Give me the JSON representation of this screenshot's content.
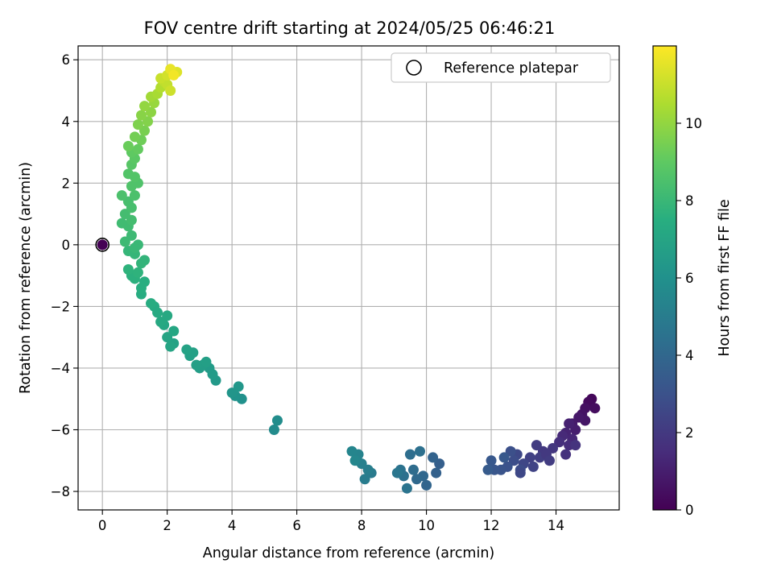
{
  "chart_data": {
    "type": "scatter",
    "title": "FOV centre drift starting at 2024/05/25 06:46:21",
    "xlabel": "Angular distance from reference (arcmin)",
    "ylabel": "Rotation from reference (arcmin)",
    "xlim": [
      -0.75,
      15.95
    ],
    "ylim": [
      -8.6,
      6.45
    ],
    "xticks": [
      0,
      2,
      4,
      6,
      8,
      10,
      12,
      14
    ],
    "yticks": [
      -8,
      -6,
      -4,
      -2,
      0,
      2,
      4,
      6
    ],
    "grid": true,
    "legend": {
      "placement": "top-right",
      "entries": [
        "Reference platepar"
      ]
    },
    "colorbar": {
      "label": "Hours from first FF file",
      "colormap": "viridis",
      "range": [
        0,
        12
      ],
      "ticks": [
        0,
        2,
        4,
        6,
        8,
        10
      ]
    },
    "reference_point": {
      "x": 0,
      "y": 0
    },
    "series": [
      {
        "points": [
          [
            15.1,
            -5.0,
            0.2
          ],
          [
            15.0,
            -5.1,
            0.3
          ],
          [
            15.2,
            -5.3,
            0.4
          ],
          [
            14.9,
            -5.3,
            0.5
          ],
          [
            14.8,
            -5.5,
            0.6
          ],
          [
            14.9,
            -5.7,
            0.7
          ],
          [
            14.7,
            -5.6,
            0.8
          ],
          [
            14.5,
            -5.8,
            0.9
          ],
          [
            14.6,
            -6.0,
            1.0
          ],
          [
            14.4,
            -5.8,
            1.1
          ],
          [
            14.3,
            -6.1,
            1.2
          ],
          [
            14.5,
            -6.3,
            1.3
          ],
          [
            14.2,
            -6.2,
            1.4
          ],
          [
            14.4,
            -6.5,
            1.5
          ],
          [
            14.1,
            -6.4,
            1.6
          ],
          [
            14.3,
            -6.8,
            1.7
          ],
          [
            14.6,
            -6.5,
            1.8
          ],
          [
            13.9,
            -6.6,
            1.9
          ],
          [
            13.6,
            -6.7,
            2.0
          ],
          [
            13.4,
            -6.5,
            2.1
          ],
          [
            13.5,
            -6.9,
            2.2
          ],
          [
            13.2,
            -6.9,
            2.3
          ],
          [
            13.3,
            -7.2,
            2.4
          ],
          [
            13.0,
            -7.1,
            2.5
          ],
          [
            12.8,
            -6.8,
            2.6
          ],
          [
            12.9,
            -7.3,
            2.7
          ],
          [
            12.7,
            -7.0,
            2.8
          ],
          [
            12.6,
            -6.7,
            2.9
          ],
          [
            12.5,
            -7.2,
            3.0
          ],
          [
            12.3,
            -7.3,
            3.1
          ],
          [
            12.1,
            -7.3,
            3.2
          ],
          [
            12.0,
            -7.0,
            3.3
          ],
          [
            12.4,
            -6.9,
            3.3
          ],
          [
            13.7,
            -6.8,
            2.0
          ],
          [
            13.8,
            -7.0,
            2.1
          ],
          [
            12.9,
            -7.4,
            2.6
          ],
          [
            11.9,
            -7.3,
            3.4
          ],
          [
            10.4,
            -7.1,
            3.6
          ],
          [
            10.3,
            -7.4,
            3.7
          ],
          [
            10.2,
            -6.9,
            3.8
          ],
          [
            10.0,
            -7.8,
            3.9
          ],
          [
            9.9,
            -7.5,
            4.0
          ],
          [
            9.7,
            -7.6,
            4.1
          ],
          [
            9.6,
            -7.3,
            4.2
          ],
          [
            9.5,
            -6.8,
            4.3
          ],
          [
            9.3,
            -7.5,
            4.4
          ],
          [
            9.2,
            -7.3,
            4.5
          ],
          [
            9.4,
            -7.9,
            4.6
          ],
          [
            9.1,
            -7.4,
            4.7
          ],
          [
            9.8,
            -6.7,
            4.4
          ],
          [
            8.3,
            -7.4,
            4.9
          ],
          [
            8.1,
            -7.6,
            5.0
          ],
          [
            8.2,
            -7.3,
            5.1
          ],
          [
            8.0,
            -7.1,
            5.2
          ],
          [
            7.9,
            -6.8,
            5.3
          ],
          [
            7.7,
            -6.7,
            5.4
          ],
          [
            7.8,
            -7.0,
            5.5
          ],
          [
            5.3,
            -6.0,
            5.7
          ],
          [
            5.4,
            -5.7,
            5.8
          ],
          [
            4.3,
            -5.0,
            6.0
          ],
          [
            4.1,
            -4.9,
            6.1
          ],
          [
            4.0,
            -4.8,
            6.2
          ],
          [
            4.2,
            -4.6,
            6.3
          ],
          [
            3.5,
            -4.4,
            6.4
          ],
          [
            3.4,
            -4.2,
            6.5
          ],
          [
            3.3,
            -4.0,
            6.5
          ],
          [
            3.1,
            -3.9,
            6.6
          ],
          [
            3.0,
            -4.0,
            6.6
          ],
          [
            2.9,
            -3.9,
            6.7
          ],
          [
            3.2,
            -3.8,
            6.7
          ],
          [
            2.7,
            -3.6,
            6.8
          ],
          [
            2.8,
            -3.5,
            6.8
          ],
          [
            2.6,
            -3.4,
            6.9
          ],
          [
            2.2,
            -3.2,
            6.9
          ],
          [
            2.1,
            -3.3,
            7.0
          ],
          [
            2.0,
            -3.0,
            7.0
          ],
          [
            2.2,
            -2.8,
            7.1
          ],
          [
            1.9,
            -2.6,
            7.1
          ],
          [
            2.0,
            -2.3,
            7.2
          ],
          [
            1.8,
            -2.5,
            7.2
          ],
          [
            1.7,
            -2.2,
            7.3
          ],
          [
            1.6,
            -2.0,
            7.3
          ],
          [
            1.5,
            -1.9,
            7.4
          ],
          [
            1.2,
            -1.6,
            7.4
          ],
          [
            1.2,
            -1.4,
            7.5
          ],
          [
            1.3,
            -1.2,
            7.5
          ],
          [
            1.0,
            -1.1,
            7.6
          ],
          [
            0.9,
            -1.0,
            7.6
          ],
          [
            1.1,
            -0.9,
            7.7
          ],
          [
            0.8,
            -0.8,
            7.7
          ],
          [
            1.2,
            -0.6,
            7.8
          ],
          [
            1.3,
            -0.5,
            7.8
          ],
          [
            1.0,
            -0.3,
            7.9
          ],
          [
            0.8,
            -0.2,
            7.9
          ],
          [
            1.1,
            0.0,
            8.0
          ],
          [
            1.0,
            -0.1,
            8.0
          ],
          [
            0.7,
            0.1,
            8.1
          ],
          [
            0.9,
            0.3,
            8.1
          ],
          [
            0.8,
            0.6,
            8.2
          ],
          [
            0.6,
            0.7,
            8.2
          ],
          [
            0.9,
            0.8,
            8.3
          ],
          [
            0.7,
            1.0,
            8.3
          ],
          [
            0.9,
            1.2,
            8.4
          ],
          [
            0.8,
            1.4,
            8.4
          ],
          [
            1.0,
            1.6,
            8.5
          ],
          [
            0.6,
            1.6,
            8.5
          ],
          [
            0.9,
            1.9,
            8.6
          ],
          [
            1.1,
            2.0,
            8.6
          ],
          [
            1.0,
            2.2,
            8.7
          ],
          [
            0.8,
            2.3,
            8.7
          ],
          [
            0.9,
            2.6,
            8.8
          ],
          [
            1.0,
            2.8,
            8.9
          ],
          [
            0.9,
            3.0,
            9.0
          ],
          [
            1.1,
            3.1,
            9.1
          ],
          [
            0.8,
            3.2,
            9.2
          ],
          [
            1.2,
            3.4,
            9.3
          ],
          [
            1.0,
            3.5,
            9.4
          ],
          [
            1.3,
            3.7,
            9.5
          ],
          [
            1.1,
            3.9,
            9.6
          ],
          [
            1.4,
            4.0,
            9.7
          ],
          [
            1.2,
            4.2,
            9.8
          ],
          [
            1.5,
            4.3,
            9.9
          ],
          [
            1.3,
            4.5,
            10.0
          ],
          [
            1.6,
            4.6,
            10.1
          ],
          [
            1.5,
            4.8,
            10.3
          ],
          [
            1.7,
            4.9,
            10.4
          ],
          [
            1.8,
            5.1,
            10.6
          ],
          [
            1.9,
            5.3,
            10.8
          ],
          [
            2.0,
            5.2,
            10.9
          ],
          [
            1.8,
            5.4,
            11.0
          ],
          [
            2.1,
            5.0,
            11.1
          ],
          [
            2.0,
            5.5,
            11.2
          ],
          [
            2.3,
            5.6,
            11.4
          ],
          [
            2.1,
            5.7,
            11.6
          ],
          [
            2.2,
            5.5,
            11.8
          ]
        ]
      }
    ]
  }
}
